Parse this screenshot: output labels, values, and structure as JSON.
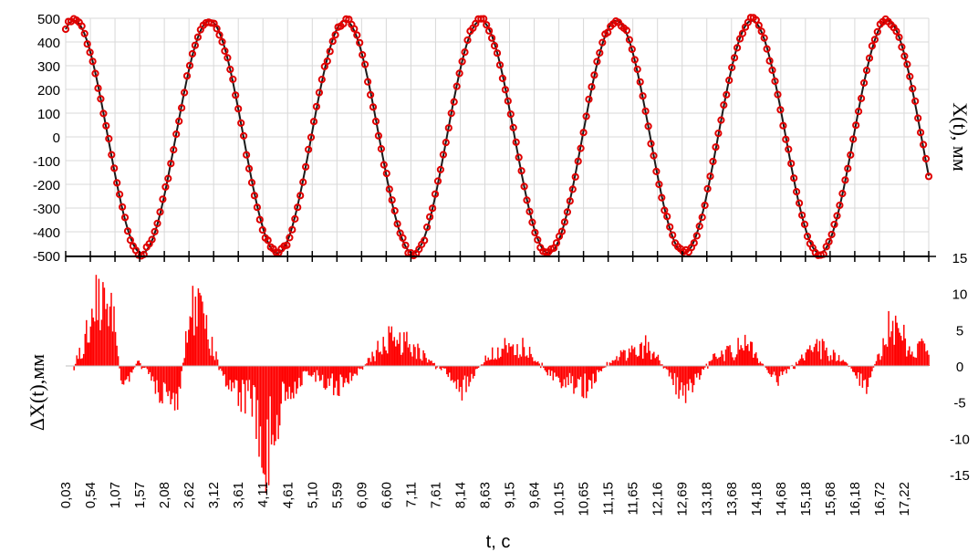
{
  "chart_data": [
    {
      "type": "line",
      "panel": "top",
      "ylabel": "X(t), мм",
      "ylim": [
        -500,
        500
      ],
      "yticks": [
        "500",
        "400",
        "300",
        "200",
        "100",
        "0",
        "-100",
        "-200",
        "-300",
        "-400",
        "-500"
      ],
      "grid": true,
      "xlim": [
        0.03,
        17.6
      ],
      "series": [
        {
          "role": "model",
          "kind": "line",
          "color": "#1a1a1a",
          "amplitude": 490,
          "period": 2.76,
          "peak_time": 0.2
        },
        {
          "role": "measured",
          "kind": "markers",
          "color": "#e00000",
          "marker": "open-circle",
          "amplitude": 490,
          "period": 2.76,
          "peak_time": 0.2
        }
      ]
    },
    {
      "type": "bar",
      "panel": "bottom",
      "ylabel": "ΔX(t),мм",
      "ylim": [
        -15,
        15
      ],
      "yticks": [
        "15",
        "10",
        "5",
        "0",
        "-5",
        "-10",
        "-15"
      ],
      "series": [
        {
          "role": "error",
          "color": "#ff0000",
          "envelope": [
            {
              "t": 0.2,
              "v": 0
            },
            {
              "t": 0.5,
              "v": 5
            },
            {
              "t": 0.75,
              "v": 10
            },
            {
              "t": 1.0,
              "v": 6
            },
            {
              "t": 1.2,
              "v": -4
            },
            {
              "t": 1.5,
              "v": 1
            },
            {
              "t": 1.9,
              "v": -3
            },
            {
              "t": 2.3,
              "v": -5
            },
            {
              "t": 2.6,
              "v": 9
            },
            {
              "t": 2.8,
              "v": 6
            },
            {
              "t": 3.3,
              "v": -2
            },
            {
              "t": 3.9,
              "v": -6
            },
            {
              "t": 4.1,
              "v": -12
            },
            {
              "t": 4.5,
              "v": -4
            },
            {
              "t": 5.0,
              "v": -1
            },
            {
              "t": 5.6,
              "v": -3
            },
            {
              "t": 6.1,
              "v": 0
            },
            {
              "t": 6.6,
              "v": 4
            },
            {
              "t": 7.0,
              "v": 3
            },
            {
              "t": 7.6,
              "v": 0
            },
            {
              "t": 8.1,
              "v": -3
            },
            {
              "t": 8.7,
              "v": 2
            },
            {
              "t": 9.3,
              "v": 3
            },
            {
              "t": 10.0,
              "v": -2
            },
            {
              "t": 10.6,
              "v": -3
            },
            {
              "t": 11.2,
              "v": 1
            },
            {
              "t": 11.9,
              "v": 3
            },
            {
              "t": 12.6,
              "v": -4
            },
            {
              "t": 13.2,
              "v": 1
            },
            {
              "t": 13.9,
              "v": 3
            },
            {
              "t": 14.5,
              "v": -2
            },
            {
              "t": 15.3,
              "v": 3
            },
            {
              "t": 16.0,
              "v": 0
            },
            {
              "t": 16.3,
              "v": -3
            },
            {
              "t": 16.8,
              "v": 5
            },
            {
              "t": 17.3,
              "v": 3
            },
            {
              "t": 17.6,
              "v": 2
            }
          ]
        }
      ]
    }
  ],
  "x_axis": {
    "label": "t, с",
    "ticks": [
      "0,03",
      "0,54",
      "1,07",
      "1,57",
      "2,08",
      "2,62",
      "3,12",
      "3,61",
      "4,11",
      "4,61",
      "5,10",
      "5,59",
      "6,09",
      "6,60",
      "7,11",
      "7,61",
      "8,14",
      "8,63",
      "9,15",
      "9,64",
      "10,15",
      "10,65",
      "11,15",
      "11,65",
      "12,16",
      "12,69",
      "13,18",
      "13,68",
      "14,18",
      "14,68",
      "15,18",
      "15,68",
      "16,18",
      "16,72",
      "17,22"
    ]
  }
}
